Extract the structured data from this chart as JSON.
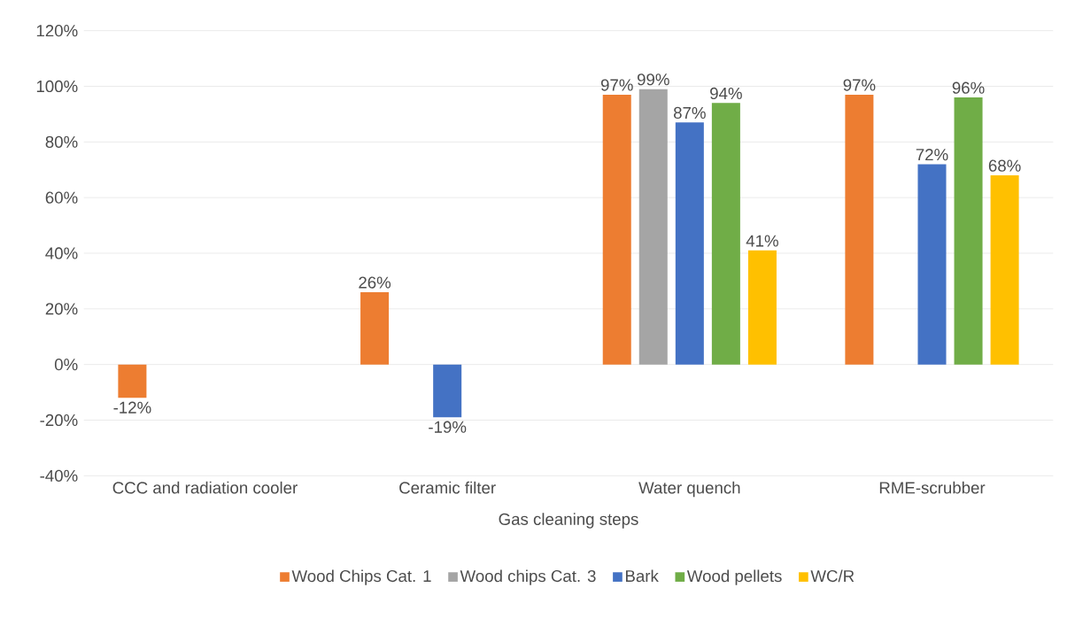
{
  "chart_data": {
    "type": "bar",
    "xlabel": "Gas cleaning steps",
    "categories": [
      "CCC and radiation cooler",
      "Ceramic filter",
      "Water quench",
      "RME-scrubber"
    ],
    "series": [
      {
        "name": "Wood Chips Cat. 1",
        "color": "#ed7d31",
        "values": [
          -12,
          26,
          97,
          97
        ],
        "value_labels": [
          "-12%",
          "26%",
          "97%",
          "97%"
        ]
      },
      {
        "name": "Wood chips Cat. 3",
        "color": "#a5a5a5",
        "values": [
          null,
          null,
          99,
          null
        ],
        "value_labels": [
          null,
          null,
          "99%",
          null
        ]
      },
      {
        "name": "Bark",
        "color": "#4472c4",
        "values": [
          null,
          -19,
          87,
          72
        ],
        "value_labels": [
          null,
          "-19%",
          "87%",
          "72%"
        ]
      },
      {
        "name": "Wood pellets",
        "color": "#70ad47",
        "values": [
          null,
          null,
          94,
          96
        ],
        "value_labels": [
          null,
          null,
          "94%",
          "96%"
        ]
      },
      {
        "name": "WC/R",
        "color": "#ffc000",
        "values": [
          null,
          null,
          41,
          68
        ],
        "value_labels": [
          null,
          null,
          "41%",
          "68%"
        ]
      }
    ],
    "ylim": [
      -40,
      120
    ],
    "yticks": [
      {
        "value": -40,
        "label": "-40%"
      },
      {
        "value": -20,
        "label": "-20%"
      },
      {
        "value": 0,
        "label": "0%"
      },
      {
        "value": 20,
        "label": "20%"
      },
      {
        "value": 40,
        "label": "40%"
      },
      {
        "value": 60,
        "label": "60%"
      },
      {
        "value": 80,
        "label": "80%"
      },
      {
        "value": 100,
        "label": "100%"
      },
      {
        "value": 120,
        "label": "120%"
      }
    ],
    "grid": "y",
    "legend": "bottom"
  }
}
